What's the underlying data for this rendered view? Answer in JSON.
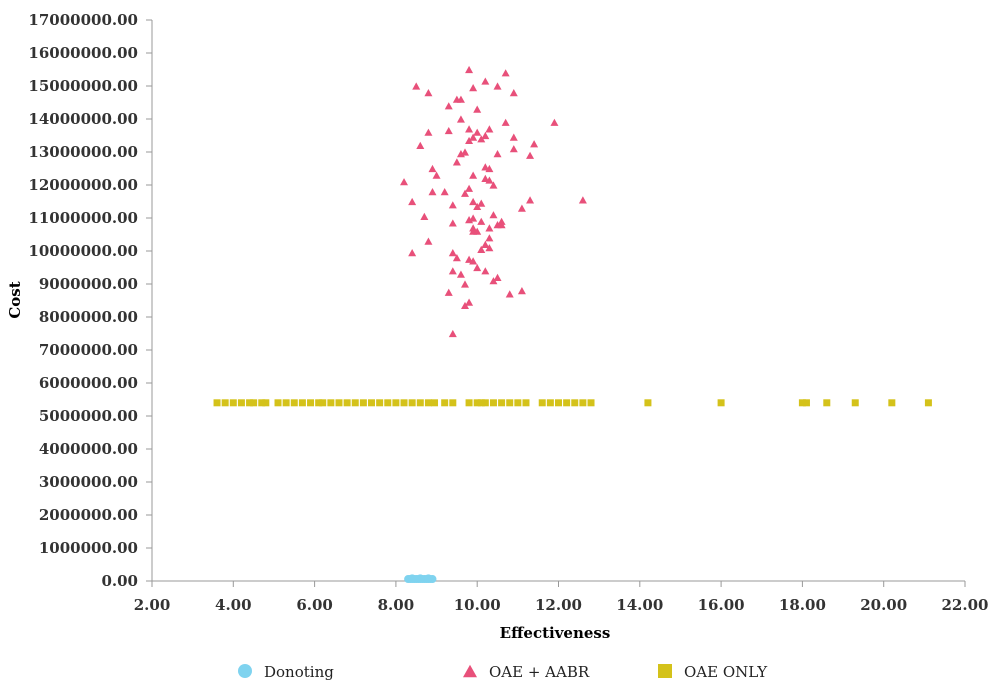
{
  "chart_data": {
    "type": "scatter",
    "title": "",
    "xlabel": "Effectiveness",
    "ylabel": "Cost",
    "xlim": [
      2,
      22
    ],
    "ylim": [
      0,
      17000000
    ],
    "x_ticks": [
      "2.00",
      "4.00",
      "6.00",
      "8.00",
      "10.00",
      "12.00",
      "14.00",
      "16.00",
      "18.00",
      "20.00",
      "22.00"
    ],
    "y_ticks": [
      "0.00",
      "1000000.00",
      "2000000.00",
      "3000000.00",
      "4000000.00",
      "5000000.00",
      "6000000.00",
      "7000000.00",
      "8000000.00",
      "9000000.00",
      "10000000.00",
      "11000000.00",
      "12000000.00",
      "13000000.00",
      "14000000.00",
      "15000000.00",
      "16000000.00",
      "17000000.00"
    ],
    "grid": false,
    "legend_position": "bottom",
    "series": [
      {
        "name": "Donoting",
        "marker": "circle",
        "color": "#7fd3ef",
        "points": [
          [
            8.3,
            60000
          ],
          [
            8.35,
            60000
          ],
          [
            8.4,
            60000
          ],
          [
            8.45,
            60000
          ],
          [
            8.5,
            60000
          ],
          [
            8.55,
            60000
          ],
          [
            8.6,
            60000
          ],
          [
            8.65,
            60000
          ],
          [
            8.7,
            60000
          ],
          [
            8.75,
            60000
          ],
          [
            8.8,
            60000
          ],
          [
            8.85,
            60000
          ],
          [
            8.9,
            60000
          ],
          [
            8.4,
            80000
          ],
          [
            8.6,
            80000
          ],
          [
            8.8,
            80000
          ]
        ]
      },
      {
        "name": "OAE + AABR",
        "marker": "triangle",
        "color": "#e8507a",
        "points": [
          [
            9.8,
            15500000
          ],
          [
            10.7,
            15400000
          ],
          [
            10.2,
            15150000
          ],
          [
            8.5,
            15000000
          ],
          [
            10.5,
            15000000
          ],
          [
            9.9,
            14950000
          ],
          [
            8.8,
            14800000
          ],
          [
            10.9,
            14800000
          ],
          [
            9.5,
            14600000
          ],
          [
            9.6,
            14600000
          ],
          [
            9.3,
            14400000
          ],
          [
            10.0,
            14300000
          ],
          [
            9.6,
            14000000
          ],
          [
            10.7,
            13900000
          ],
          [
            11.9,
            13900000
          ],
          [
            9.8,
            13700000
          ],
          [
            10.3,
            13700000
          ],
          [
            9.3,
            13650000
          ],
          [
            8.8,
            13600000
          ],
          [
            10.0,
            13600000
          ],
          [
            10.2,
            13500000
          ],
          [
            9.9,
            13450000
          ],
          [
            10.9,
            13450000
          ],
          [
            10.1,
            13400000
          ],
          [
            9.8,
            13350000
          ],
          [
            11.4,
            13250000
          ],
          [
            8.6,
            13200000
          ],
          [
            10.9,
            13100000
          ],
          [
            9.7,
            13000000
          ],
          [
            9.6,
            12950000
          ],
          [
            10.5,
            12950000
          ],
          [
            11.3,
            12900000
          ],
          [
            9.5,
            12700000
          ],
          [
            10.2,
            12550000
          ],
          [
            10.3,
            12500000
          ],
          [
            8.9,
            12500000
          ],
          [
            9.0,
            12300000
          ],
          [
            9.9,
            12300000
          ],
          [
            10.2,
            12200000
          ],
          [
            10.3,
            12150000
          ],
          [
            8.2,
            12100000
          ],
          [
            10.4,
            12000000
          ],
          [
            9.8,
            11900000
          ],
          [
            8.9,
            11800000
          ],
          [
            9.2,
            11800000
          ],
          [
            9.7,
            11750000
          ],
          [
            11.3,
            11550000
          ],
          [
            12.6,
            11550000
          ],
          [
            8.4,
            11500000
          ],
          [
            9.9,
            11500000
          ],
          [
            10.1,
            11450000
          ],
          [
            9.4,
            11400000
          ],
          [
            10.0,
            11350000
          ],
          [
            11.1,
            11300000
          ],
          [
            10.4,
            11100000
          ],
          [
            8.7,
            11050000
          ],
          [
            9.9,
            11000000
          ],
          [
            10.1,
            10900000
          ],
          [
            9.8,
            10950000
          ],
          [
            10.6,
            10900000
          ],
          [
            9.4,
            10850000
          ],
          [
            10.5,
            10800000
          ],
          [
            10.3,
            10700000
          ],
          [
            10.0,
            10600000
          ],
          [
            9.9,
            10600000
          ],
          [
            10.3,
            10400000
          ],
          [
            10.2,
            10200000
          ],
          [
            8.8,
            10300000
          ],
          [
            10.3,
            10100000
          ],
          [
            10.1,
            10050000
          ],
          [
            8.4,
            9950000
          ],
          [
            9.4,
            9950000
          ],
          [
            9.5,
            9800000
          ],
          [
            9.8,
            9750000
          ],
          [
            9.9,
            9700000
          ],
          [
            10.0,
            9500000
          ],
          [
            9.4,
            9400000
          ],
          [
            10.2,
            9400000
          ],
          [
            9.6,
            9300000
          ],
          [
            10.5,
            9200000
          ],
          [
            9.7,
            9000000
          ],
          [
            9.3,
            8750000
          ],
          [
            10.8,
            8700000
          ],
          [
            11.1,
            8800000
          ],
          [
            9.8,
            8450000
          ],
          [
            9.7,
            8350000
          ],
          [
            9.4,
            7500000
          ],
          [
            10.4,
            9100000
          ],
          [
            9.9,
            10700000
          ],
          [
            10.6,
            10800000
          ]
        ]
      },
      {
        "name": "OAE ONLY",
        "marker": "square",
        "color": "#d4c21a",
        "points": [
          [
            3.6,
            5400000
          ],
          [
            3.8,
            5400000
          ],
          [
            4.0,
            5400000
          ],
          [
            4.2,
            5400000
          ],
          [
            4.4,
            5400000
          ],
          [
            4.5,
            5400000
          ],
          [
            4.7,
            5400000
          ],
          [
            4.8,
            5400000
          ],
          [
            5.1,
            5400000
          ],
          [
            5.3,
            5400000
          ],
          [
            5.5,
            5400000
          ],
          [
            5.7,
            5400000
          ],
          [
            5.9,
            5400000
          ],
          [
            6.1,
            5400000
          ],
          [
            6.2,
            5400000
          ],
          [
            6.4,
            5400000
          ],
          [
            6.6,
            5400000
          ],
          [
            6.8,
            5400000
          ],
          [
            7.0,
            5400000
          ],
          [
            7.2,
            5400000
          ],
          [
            7.4,
            5400000
          ],
          [
            7.6,
            5400000
          ],
          [
            7.8,
            5400000
          ],
          [
            8.0,
            5400000
          ],
          [
            8.2,
            5400000
          ],
          [
            8.4,
            5400000
          ],
          [
            8.6,
            5400000
          ],
          [
            8.8,
            5400000
          ],
          [
            9.2,
            5400000
          ],
          [
            9.4,
            5400000
          ],
          [
            9.8,
            5400000
          ],
          [
            10.0,
            5400000
          ],
          [
            10.2,
            5400000
          ],
          [
            10.4,
            5400000
          ],
          [
            10.6,
            5400000
          ],
          [
            10.8,
            5400000
          ],
          [
            11.0,
            5400000
          ],
          [
            11.2,
            5400000
          ],
          [
            11.6,
            5400000
          ],
          [
            11.8,
            5400000
          ],
          [
            12.0,
            5400000
          ],
          [
            12.2,
            5400000
          ],
          [
            12.4,
            5400000
          ],
          [
            12.6,
            5400000
          ],
          [
            12.8,
            5400000
          ],
          [
            14.2,
            5400000
          ],
          [
            16.0,
            5400000
          ],
          [
            18.0,
            5400000
          ],
          [
            18.1,
            5400000
          ],
          [
            18.6,
            5400000
          ],
          [
            19.3,
            5400000
          ],
          [
            20.2,
            5400000
          ],
          [
            21.1,
            5400000
          ],
          [
            8.95,
            5400000
          ],
          [
            10.1,
            5400000
          ]
        ]
      }
    ]
  }
}
